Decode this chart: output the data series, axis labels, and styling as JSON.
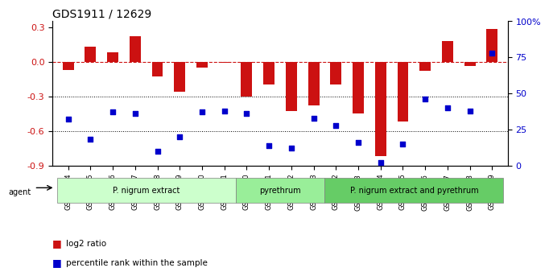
{
  "title": "GDS1911 / 12629",
  "samples": [
    "GSM66824",
    "GSM66825",
    "GSM66826",
    "GSM66827",
    "GSM66828",
    "GSM66829",
    "GSM66830",
    "GSM66831",
    "GSM66840",
    "GSM66841",
    "GSM66842",
    "GSM66843",
    "GSM66832",
    "GSM66833",
    "GSM66834",
    "GSM66835",
    "GSM66836",
    "GSM66837",
    "GSM66838",
    "GSM66839"
  ],
  "log2_ratio": [
    -0.07,
    0.13,
    0.08,
    0.22,
    -0.13,
    -0.26,
    -0.05,
    -0.01,
    -0.3,
    -0.2,
    -0.43,
    -0.38,
    -0.2,
    -0.45,
    -0.82,
    -0.52,
    -0.08,
    0.18,
    -0.04,
    0.28
  ],
  "percentile": [
    32,
    18,
    37,
    36,
    10,
    20,
    37,
    38,
    36,
    14,
    12,
    33,
    28,
    16,
    2,
    15,
    46,
    40,
    38,
    78
  ],
  "groups": [
    {
      "label": "P. nigrum extract",
      "start": 0,
      "end": 7,
      "color": "#ccffcc"
    },
    {
      "label": "pyrethrum",
      "start": 8,
      "end": 11,
      "color": "#99ff99"
    },
    {
      "label": "P. nigrum extract and pyrethrum",
      "start": 12,
      "end": 19,
      "color": "#66cc66"
    }
  ],
  "bar_color": "#cc1111",
  "dot_color": "#0000cc",
  "ylim_left": [
    -0.9,
    0.35
  ],
  "ylim_right": [
    0,
    100
  ],
  "yticks_left": [
    -0.9,
    -0.6,
    -0.3,
    0.0,
    0.3
  ],
  "yticks_right": [
    0,
    25,
    50,
    75,
    100
  ],
  "ylabel_right_labels": [
    "0",
    "25",
    "50",
    "75",
    "100%"
  ],
  "hline_y": 0.0,
  "dotted_lines": [
    -0.3,
    -0.6
  ],
  "bar_width": 0.5
}
